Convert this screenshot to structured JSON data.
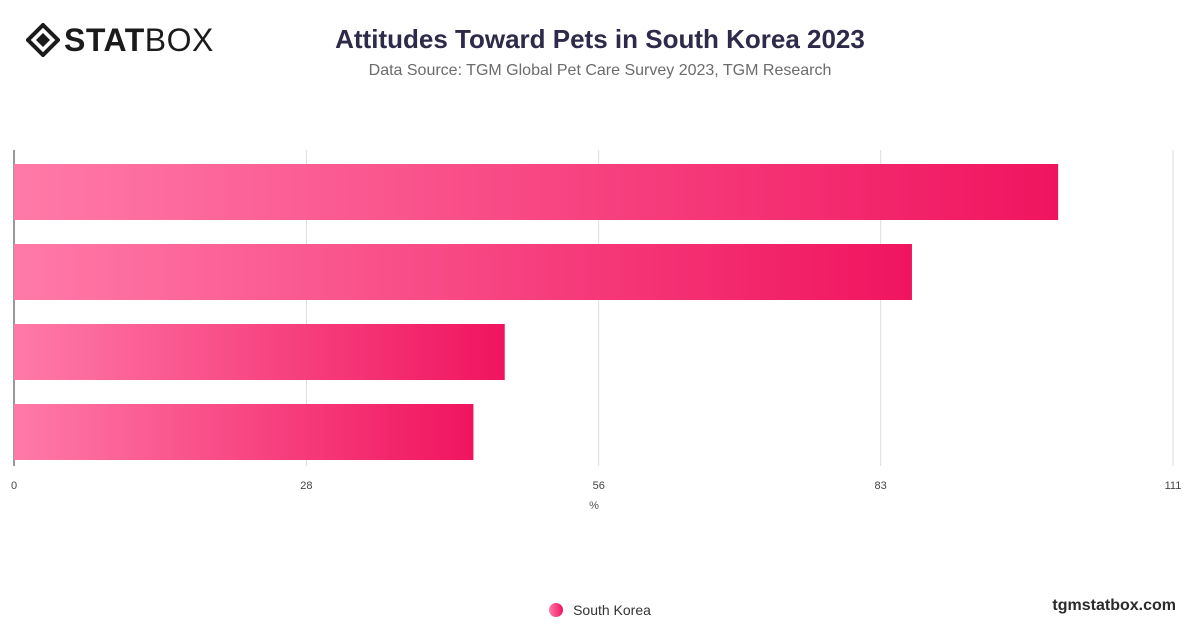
{
  "logo": {
    "part1": "STAT",
    "part2": "BOX",
    "icon": "diamond-logo-icon"
  },
  "title": "Attitudes Toward Pets in South Korea 2023",
  "subtitle": "Data Source: TGM Global Pet Care Survey 2023, TGM Research",
  "legend": {
    "label": "South Korea"
  },
  "footer": "tgmstatbox.com",
  "colors": {
    "bar_start": "#ff7aa8",
    "bar_end": "#f0145f",
    "grid": "#dddddd",
    "axis": "#333333"
  },
  "chart_data": {
    "type": "bar",
    "orientation": "horizontal",
    "title": "Attitudes Toward Pets in South Korea 2023",
    "xlabel": "%",
    "xlim": [
      0,
      111
    ],
    "xticks": [
      "0",
      "28",
      "56",
      "83",
      "111"
    ],
    "xtick_values": [
      0,
      28,
      56,
      83,
      111
    ],
    "categories": [
      "",
      "",
      "",
      ""
    ],
    "series": [
      {
        "name": "South Korea",
        "values": [
          100,
          86,
          47,
          44
        ]
      }
    ],
    "grid": true,
    "legend_position": "bottom-center"
  }
}
